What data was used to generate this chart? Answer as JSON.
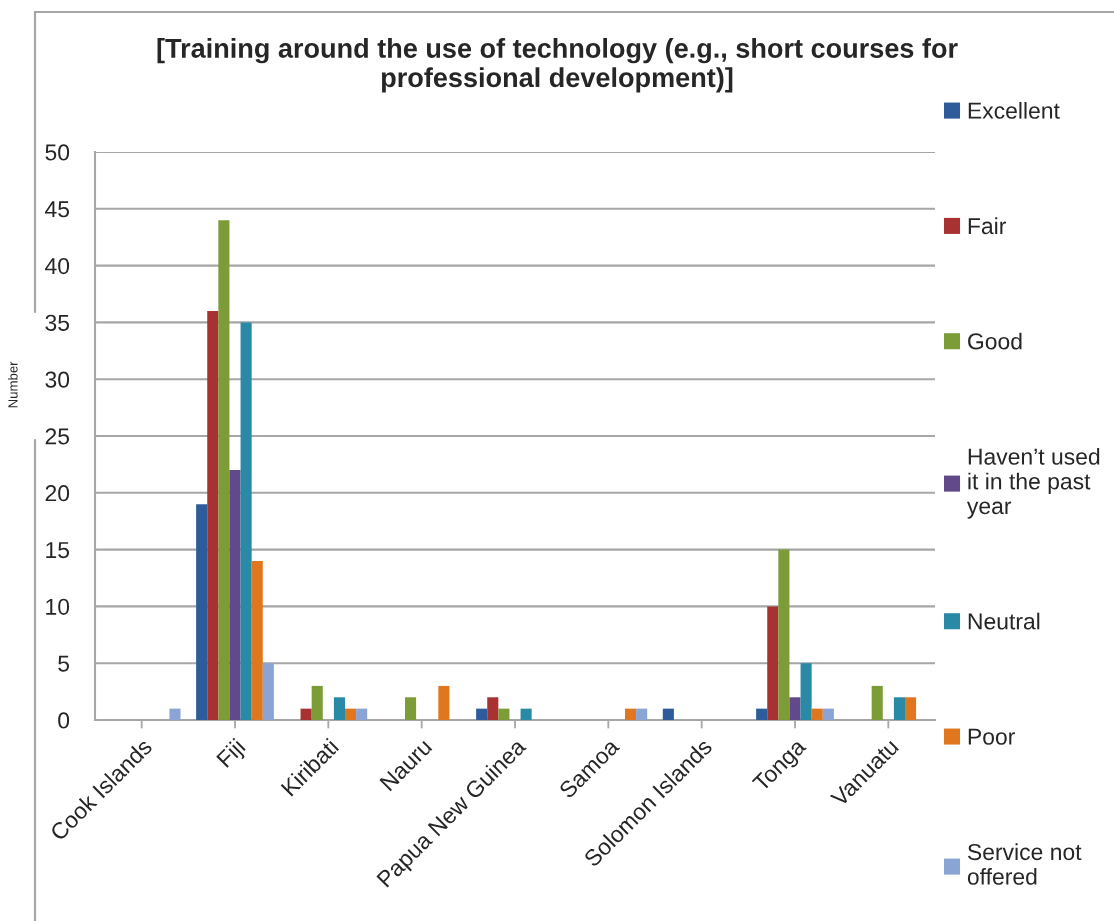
{
  "chart_data": {
    "type": "bar",
    "title": "[Training around the use of technology (e.g., short courses for professional development)]",
    "ylabel": "Number",
    "categories": [
      "Cook Islands",
      "Fiji",
      "Kiribati",
      "Nauru",
      "Papua New Guinea",
      "Samoa",
      "Solomon Islands",
      "Tonga",
      "Vanuatu"
    ],
    "series": [
      {
        "name": "Excellent",
        "color": "#2e5c9a",
        "values": [
          null,
          19,
          null,
          null,
          1,
          null,
          1,
          1,
          null
        ]
      },
      {
        "name": "Fair",
        "color": "#a83232",
        "values": [
          null,
          36,
          1,
          null,
          2,
          null,
          null,
          10,
          null
        ]
      },
      {
        "name": "Good",
        "color": "#7c9c38",
        "values": [
          null,
          44,
          3,
          2,
          1,
          null,
          null,
          15,
          3
        ]
      },
      {
        "name": "Haven’t used it in the past year",
        "color": "#62498a",
        "values": [
          null,
          22,
          null,
          null,
          null,
          null,
          null,
          2,
          null
        ]
      },
      {
        "name": "Neutral",
        "color": "#2a8aa6",
        "values": [
          null,
          35,
          2,
          null,
          1,
          null,
          null,
          5,
          2
        ]
      },
      {
        "name": "Poor",
        "color": "#e0761e",
        "values": [
          null,
          14,
          1,
          3,
          null,
          1,
          null,
          1,
          2
        ]
      },
      {
        "name": "Service not offered",
        "color": "#8aa4d4",
        "values": [
          1,
          5,
          1,
          null,
          null,
          1,
          null,
          1,
          null
        ]
      }
    ],
    "ylim": [
      0,
      50
    ],
    "yticks": [
      0,
      5,
      10,
      15,
      20,
      25,
      30,
      35,
      40,
      45,
      50
    ],
    "grid": "y",
    "legend": "right"
  }
}
